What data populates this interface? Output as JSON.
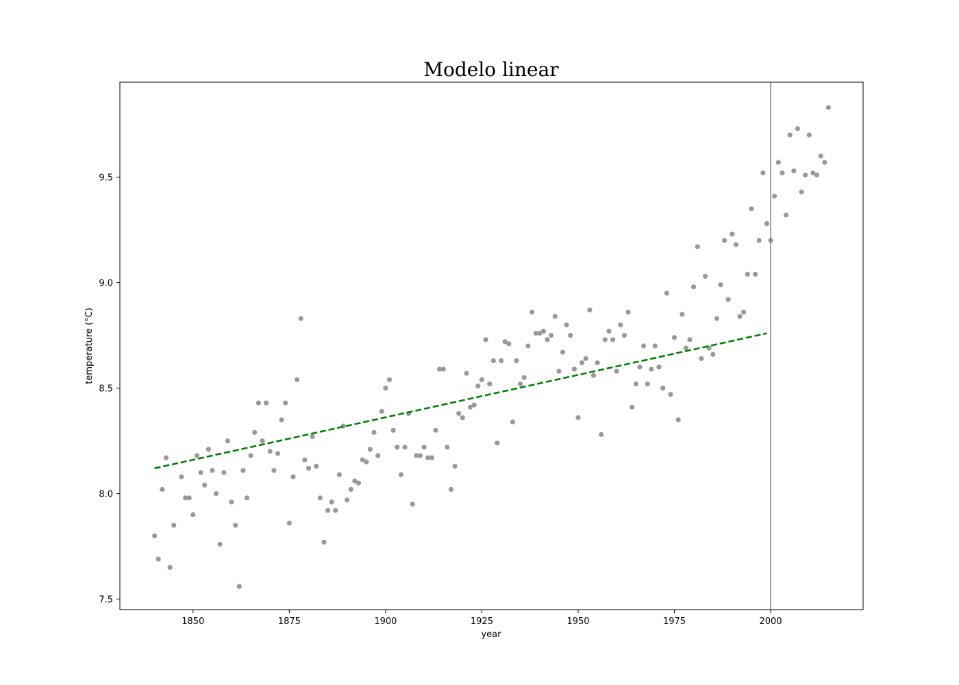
{
  "chart_data": {
    "type": "scatter",
    "title": "Modelo linear",
    "xlabel": "year",
    "ylabel": "temperature (°C)",
    "xlim": [
      1831,
      2024
    ],
    "ylim": [
      7.45,
      9.95
    ],
    "x_ticks": [
      1850,
      1875,
      1900,
      1925,
      1950,
      1975,
      2000
    ],
    "y_ticks": [
      7.5,
      8.0,
      8.5,
      9.0,
      9.5
    ],
    "x_tick_labels": [
      "1850",
      "1875",
      "1900",
      "1925",
      "1950",
      "1975",
      "2000"
    ],
    "y_tick_labels": [
      "7.5",
      "8.0",
      "8.5",
      "9.0",
      "9.5"
    ],
    "grid": false,
    "legend": "none",
    "colors": {
      "points": "#999999",
      "trend": "#008000",
      "vline": "#808080"
    },
    "series": [
      {
        "kind": "scatter",
        "x": [
          1840,
          1841,
          1842,
          1843,
          1844,
          1845,
          1847,
          1848,
          1849,
          1850,
          1851,
          1852,
          1853,
          1854,
          1855,
          1856,
          1857,
          1858,
          1859,
          1860,
          1861,
          1862,
          1863,
          1864,
          1865,
          1866,
          1867,
          1868,
          1869,
          1870,
          1871,
          1872,
          1873,
          1874,
          1875,
          1876,
          1877,
          1878,
          1879,
          1880,
          1881,
          1882,
          1883,
          1884,
          1885,
          1886,
          1887,
          1888,
          1889,
          1890,
          1891,
          1892,
          1893,
          1894,
          1895,
          1896,
          1897,
          1898,
          1899,
          1900,
          1901,
          1902,
          1903,
          1904,
          1905,
          1906,
          1907,
          1908,
          1909,
          1910,
          1911,
          1912,
          1913,
          1914,
          1915,
          1916,
          1917,
          1918,
          1919,
          1920,
          1921,
          1922,
          1923,
          1924,
          1925,
          1926,
          1927,
          1928,
          1929,
          1930,
          1931,
          1932,
          1933,
          1934,
          1935,
          1936,
          1937,
          1938,
          1939,
          1940,
          1941,
          1942,
          1943,
          1944,
          1945,
          1946,
          1947,
          1948,
          1949,
          1950,
          1951,
          1952,
          1953,
          1954,
          1955,
          1956,
          1957,
          1958,
          1959,
          1960,
          1961,
          1962,
          1963,
          1964,
          1965,
          1966,
          1967,
          1968,
          1969,
          1970,
          1971,
          1972,
          1973,
          1974,
          1975,
          1976,
          1977,
          1978,
          1979,
          1980,
          1981,
          1982,
          1983,
          1984,
          1985,
          1986,
          1987,
          1988,
          1989,
          1990,
          1991,
          1992,
          1993,
          1994,
          1995,
          1996,
          1997,
          1998,
          1999,
          2000,
          2001,
          2002,
          2003,
          2004,
          2005,
          2006,
          2007,
          2008,
          2009,
          2010,
          2011,
          2012,
          2013,
          2014,
          2015
        ],
        "y": [
          7.8,
          7.69,
          8.02,
          8.17,
          7.65,
          7.85,
          8.08,
          7.98,
          7.98,
          7.9,
          8.18,
          8.1,
          8.04,
          8.21,
          8.11,
          8.0,
          7.76,
          8.1,
          8.25,
          7.96,
          7.85,
          7.56,
          8.11,
          7.98,
          8.18,
          8.29,
          8.43,
          8.25,
          8.43,
          8.2,
          8.11,
          8.19,
          8.35,
          8.43,
          7.86,
          8.08,
          8.54,
          8.83,
          8.16,
          8.12,
          8.27,
          8.13,
          7.98,
          7.77,
          7.92,
          7.96,
          7.92,
          8.09,
          8.32,
          7.97,
          8.02,
          8.06,
          8.05,
          8.16,
          8.15,
          8.21,
          8.29,
          8.18,
          8.39,
          8.5,
          8.54,
          8.3,
          8.22,
          8.09,
          8.22,
          8.38,
          7.95,
          8.18,
          8.18,
          8.22,
          8.17,
          8.17,
          8.3,
          8.59,
          8.59,
          8.22,
          8.02,
          8.13,
          8.38,
          8.36,
          8.57,
          8.41,
          8.42,
          8.51,
          8.54,
          8.73,
          8.52,
          8.63,
          8.24,
          8.63,
          8.72,
          8.71,
          8.34,
          8.63,
          8.52,
          8.55,
          8.7,
          8.86,
          8.76,
          8.76,
          8.77,
          8.73,
          8.75,
          8.84,
          8.58,
          8.67,
          8.8,
          8.75,
          8.59,
          8.36,
          8.62,
          8.64,
          8.87,
          8.56,
          8.62,
          8.28,
          8.73,
          8.77,
          8.73,
          8.58,
          8.8,
          8.75,
          8.86,
          8.41,
          8.52,
          8.6,
          8.7,
          8.52,
          8.59,
          8.7,
          8.6,
          8.5,
          8.95,
          8.47,
          8.74,
          8.35,
          8.85,
          8.69,
          8.73,
          8.98,
          9.17,
          8.64,
          9.03,
          8.69,
          8.66,
          8.83,
          8.99,
          9.2,
          8.92,
          9.23,
          9.18,
          8.84,
          8.86,
          9.04,
          9.35,
          9.04,
          9.2,
          9.52,
          9.28,
          9.2,
          9.41,
          9.57,
          9.52,
          9.32,
          9.7,
          9.53,
          9.73,
          9.43,
          9.51,
          9.7,
          9.52,
          9.51,
          9.6,
          9.57,
          9.83
        ]
      },
      {
        "kind": "trend",
        "x": [
          1840,
          1999
        ],
        "y": [
          8.12,
          8.76
        ]
      }
    ],
    "vline_x": 2000
  }
}
